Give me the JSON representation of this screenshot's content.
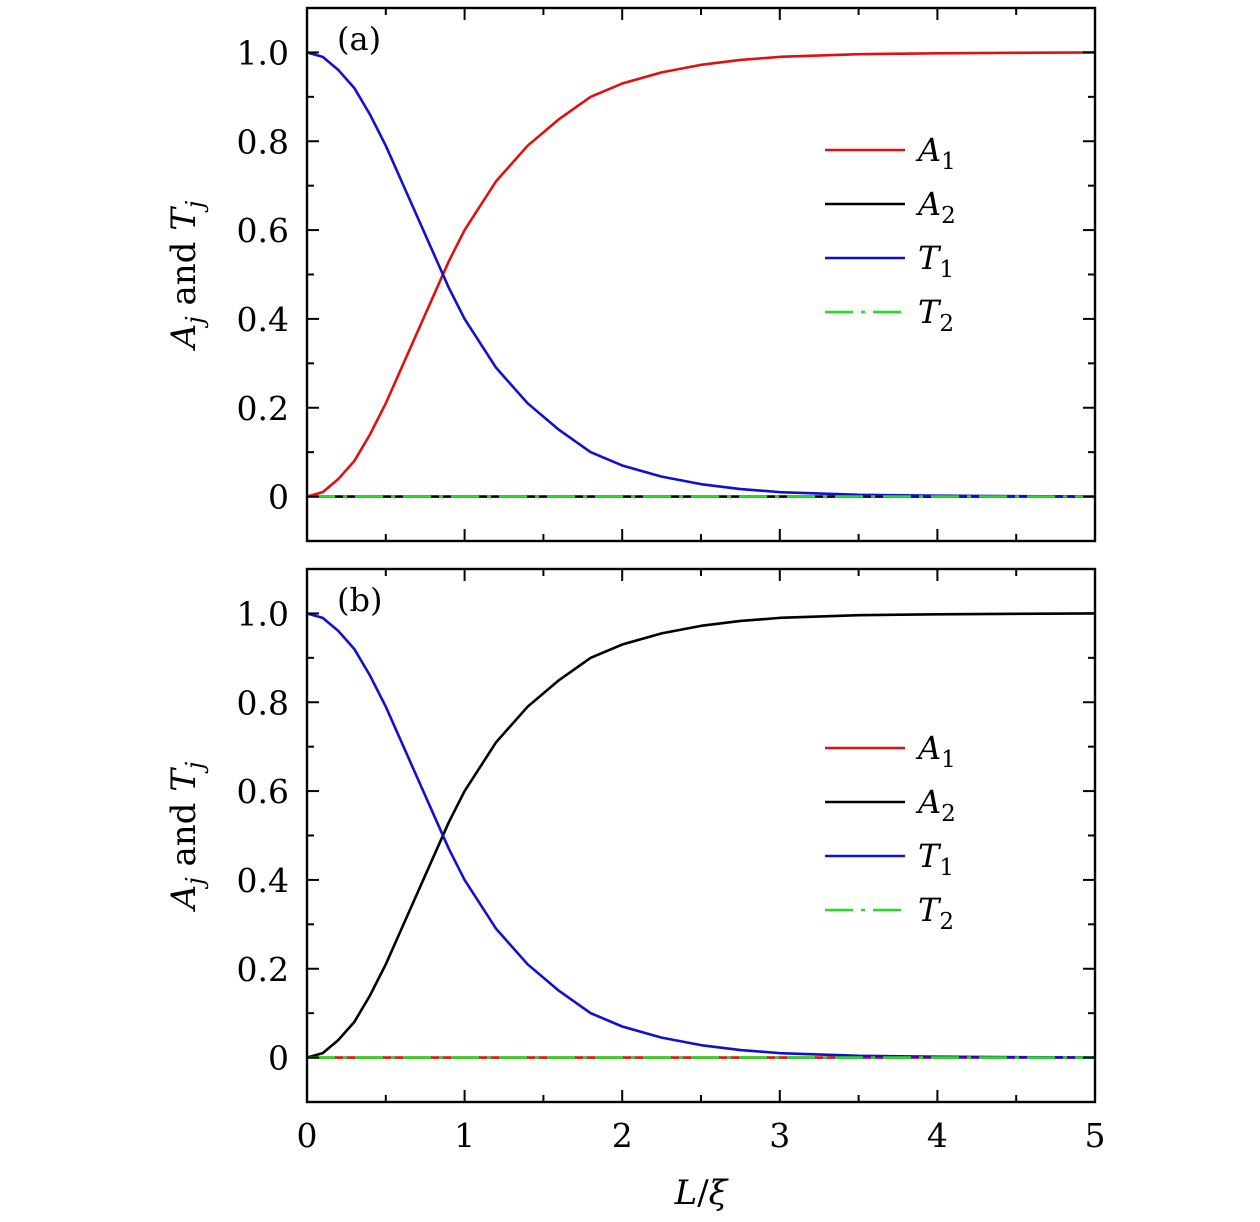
{
  "chart_data": [
    {
      "type": "line",
      "panel_label": "(a)",
      "ylabel": {
        "main": "A",
        "sub": "j",
        "mid": " and ",
        "main2": "T",
        "sub2": "j"
      },
      "xlabel": "",
      "xlim": [
        0,
        5
      ],
      "ylim": [
        -0.1,
        1.1
      ],
      "x_ticks": [
        "0",
        "1",
        "2",
        "3",
        "4",
        "5"
      ],
      "x_tick_values": [
        0,
        1,
        2,
        3,
        4,
        5
      ],
      "y_ticks": [
        "0",
        "0.2",
        "0.4",
        "0.6",
        "0.8",
        "1.0"
      ],
      "y_tick_values": [
        0,
        0.2,
        0.4,
        0.6,
        0.8,
        1.0
      ],
      "legend_position": "right",
      "series": [
        {
          "name": "A",
          "sub": "1",
          "color": "#e01010",
          "style": "solid",
          "x": [
            0,
            0.1,
            0.2,
            0.3,
            0.4,
            0.5,
            0.6,
            0.7,
            0.8,
            0.9,
            1.0,
            1.2,
            1.4,
            1.6,
            1.8,
            2.0,
            2.25,
            2.5,
            2.75,
            3.0,
            3.5,
            4.0,
            4.5,
            5.0
          ],
          "values": [
            0,
            0.01,
            0.04,
            0.08,
            0.14,
            0.21,
            0.29,
            0.37,
            0.45,
            0.53,
            0.6,
            0.71,
            0.79,
            0.85,
            0.9,
            0.93,
            0.955,
            0.972,
            0.983,
            0.99,
            0.996,
            0.998,
            0.999,
            1.0
          ]
        },
        {
          "name": "A",
          "sub": "2",
          "color": "#000000",
          "style": "solid",
          "x": [
            0,
            5
          ],
          "values": [
            0,
            0
          ]
        },
        {
          "name": "T",
          "sub": "1",
          "color": "#1010d0",
          "style": "solid",
          "x": [
            0,
            0.1,
            0.2,
            0.3,
            0.4,
            0.5,
            0.6,
            0.7,
            0.8,
            0.9,
            1.0,
            1.2,
            1.4,
            1.6,
            1.8,
            2.0,
            2.25,
            2.5,
            2.75,
            3.0,
            3.5,
            4.0,
            4.5,
            5.0
          ],
          "values": [
            1.0,
            0.99,
            0.96,
            0.92,
            0.86,
            0.79,
            0.71,
            0.63,
            0.55,
            0.47,
            0.4,
            0.29,
            0.21,
            0.15,
            0.1,
            0.07,
            0.045,
            0.028,
            0.017,
            0.01,
            0.004,
            0.002,
            0.001,
            0.0
          ]
        },
        {
          "name": "T",
          "sub": "2",
          "color": "#22dd22",
          "style": "dashdot",
          "x": [
            0,
            5
          ],
          "values": [
            0,
            0
          ]
        }
      ]
    },
    {
      "type": "line",
      "panel_label": "(b)",
      "ylabel": {
        "main": "A",
        "sub": "j",
        "mid": " and ",
        "main2": "T",
        "sub2": "j"
      },
      "xlabel": {
        "main": "L",
        "slash": "/",
        "greek": "ξ"
      },
      "xlim": [
        0,
        5
      ],
      "ylim": [
        -0.1,
        1.1
      ],
      "x_ticks": [
        "0",
        "1",
        "2",
        "3",
        "4",
        "5"
      ],
      "x_tick_values": [
        0,
        1,
        2,
        3,
        4,
        5
      ],
      "y_ticks": [
        "0",
        "0.2",
        "0.4",
        "0.6",
        "0.8",
        "1.0"
      ],
      "y_tick_values": [
        0,
        0.2,
        0.4,
        0.6,
        0.8,
        1.0
      ],
      "legend_position": "right",
      "series": [
        {
          "name": "A",
          "sub": "1",
          "color": "#e01010",
          "style": "solid",
          "x": [
            0,
            5
          ],
          "values": [
            0,
            0
          ]
        },
        {
          "name": "A",
          "sub": "2",
          "color": "#000000",
          "style": "solid",
          "x": [
            0,
            0.1,
            0.2,
            0.3,
            0.4,
            0.5,
            0.6,
            0.7,
            0.8,
            0.9,
            1.0,
            1.2,
            1.4,
            1.6,
            1.8,
            2.0,
            2.25,
            2.5,
            2.75,
            3.0,
            3.5,
            4.0,
            4.5,
            5.0
          ],
          "values": [
            0,
            0.01,
            0.04,
            0.08,
            0.14,
            0.21,
            0.29,
            0.37,
            0.45,
            0.53,
            0.6,
            0.71,
            0.79,
            0.85,
            0.9,
            0.93,
            0.955,
            0.972,
            0.983,
            0.99,
            0.996,
            0.998,
            0.999,
            1.0
          ]
        },
        {
          "name": "T",
          "sub": "1",
          "color": "#1010d0",
          "style": "solid",
          "x": [
            0,
            0.1,
            0.2,
            0.3,
            0.4,
            0.5,
            0.6,
            0.7,
            0.8,
            0.9,
            1.0,
            1.2,
            1.4,
            1.6,
            1.8,
            2.0,
            2.25,
            2.5,
            2.75,
            3.0,
            3.5,
            4.0,
            4.5,
            5.0
          ],
          "values": [
            1.0,
            0.99,
            0.96,
            0.92,
            0.86,
            0.79,
            0.71,
            0.63,
            0.55,
            0.47,
            0.4,
            0.29,
            0.21,
            0.15,
            0.1,
            0.07,
            0.045,
            0.028,
            0.017,
            0.01,
            0.004,
            0.002,
            0.001,
            0.0
          ]
        },
        {
          "name": "T",
          "sub": "2",
          "color": "#22dd22",
          "style": "dashdot",
          "x": [
            0,
            5
          ],
          "values": [
            0,
            0
          ]
        }
      ]
    }
  ]
}
